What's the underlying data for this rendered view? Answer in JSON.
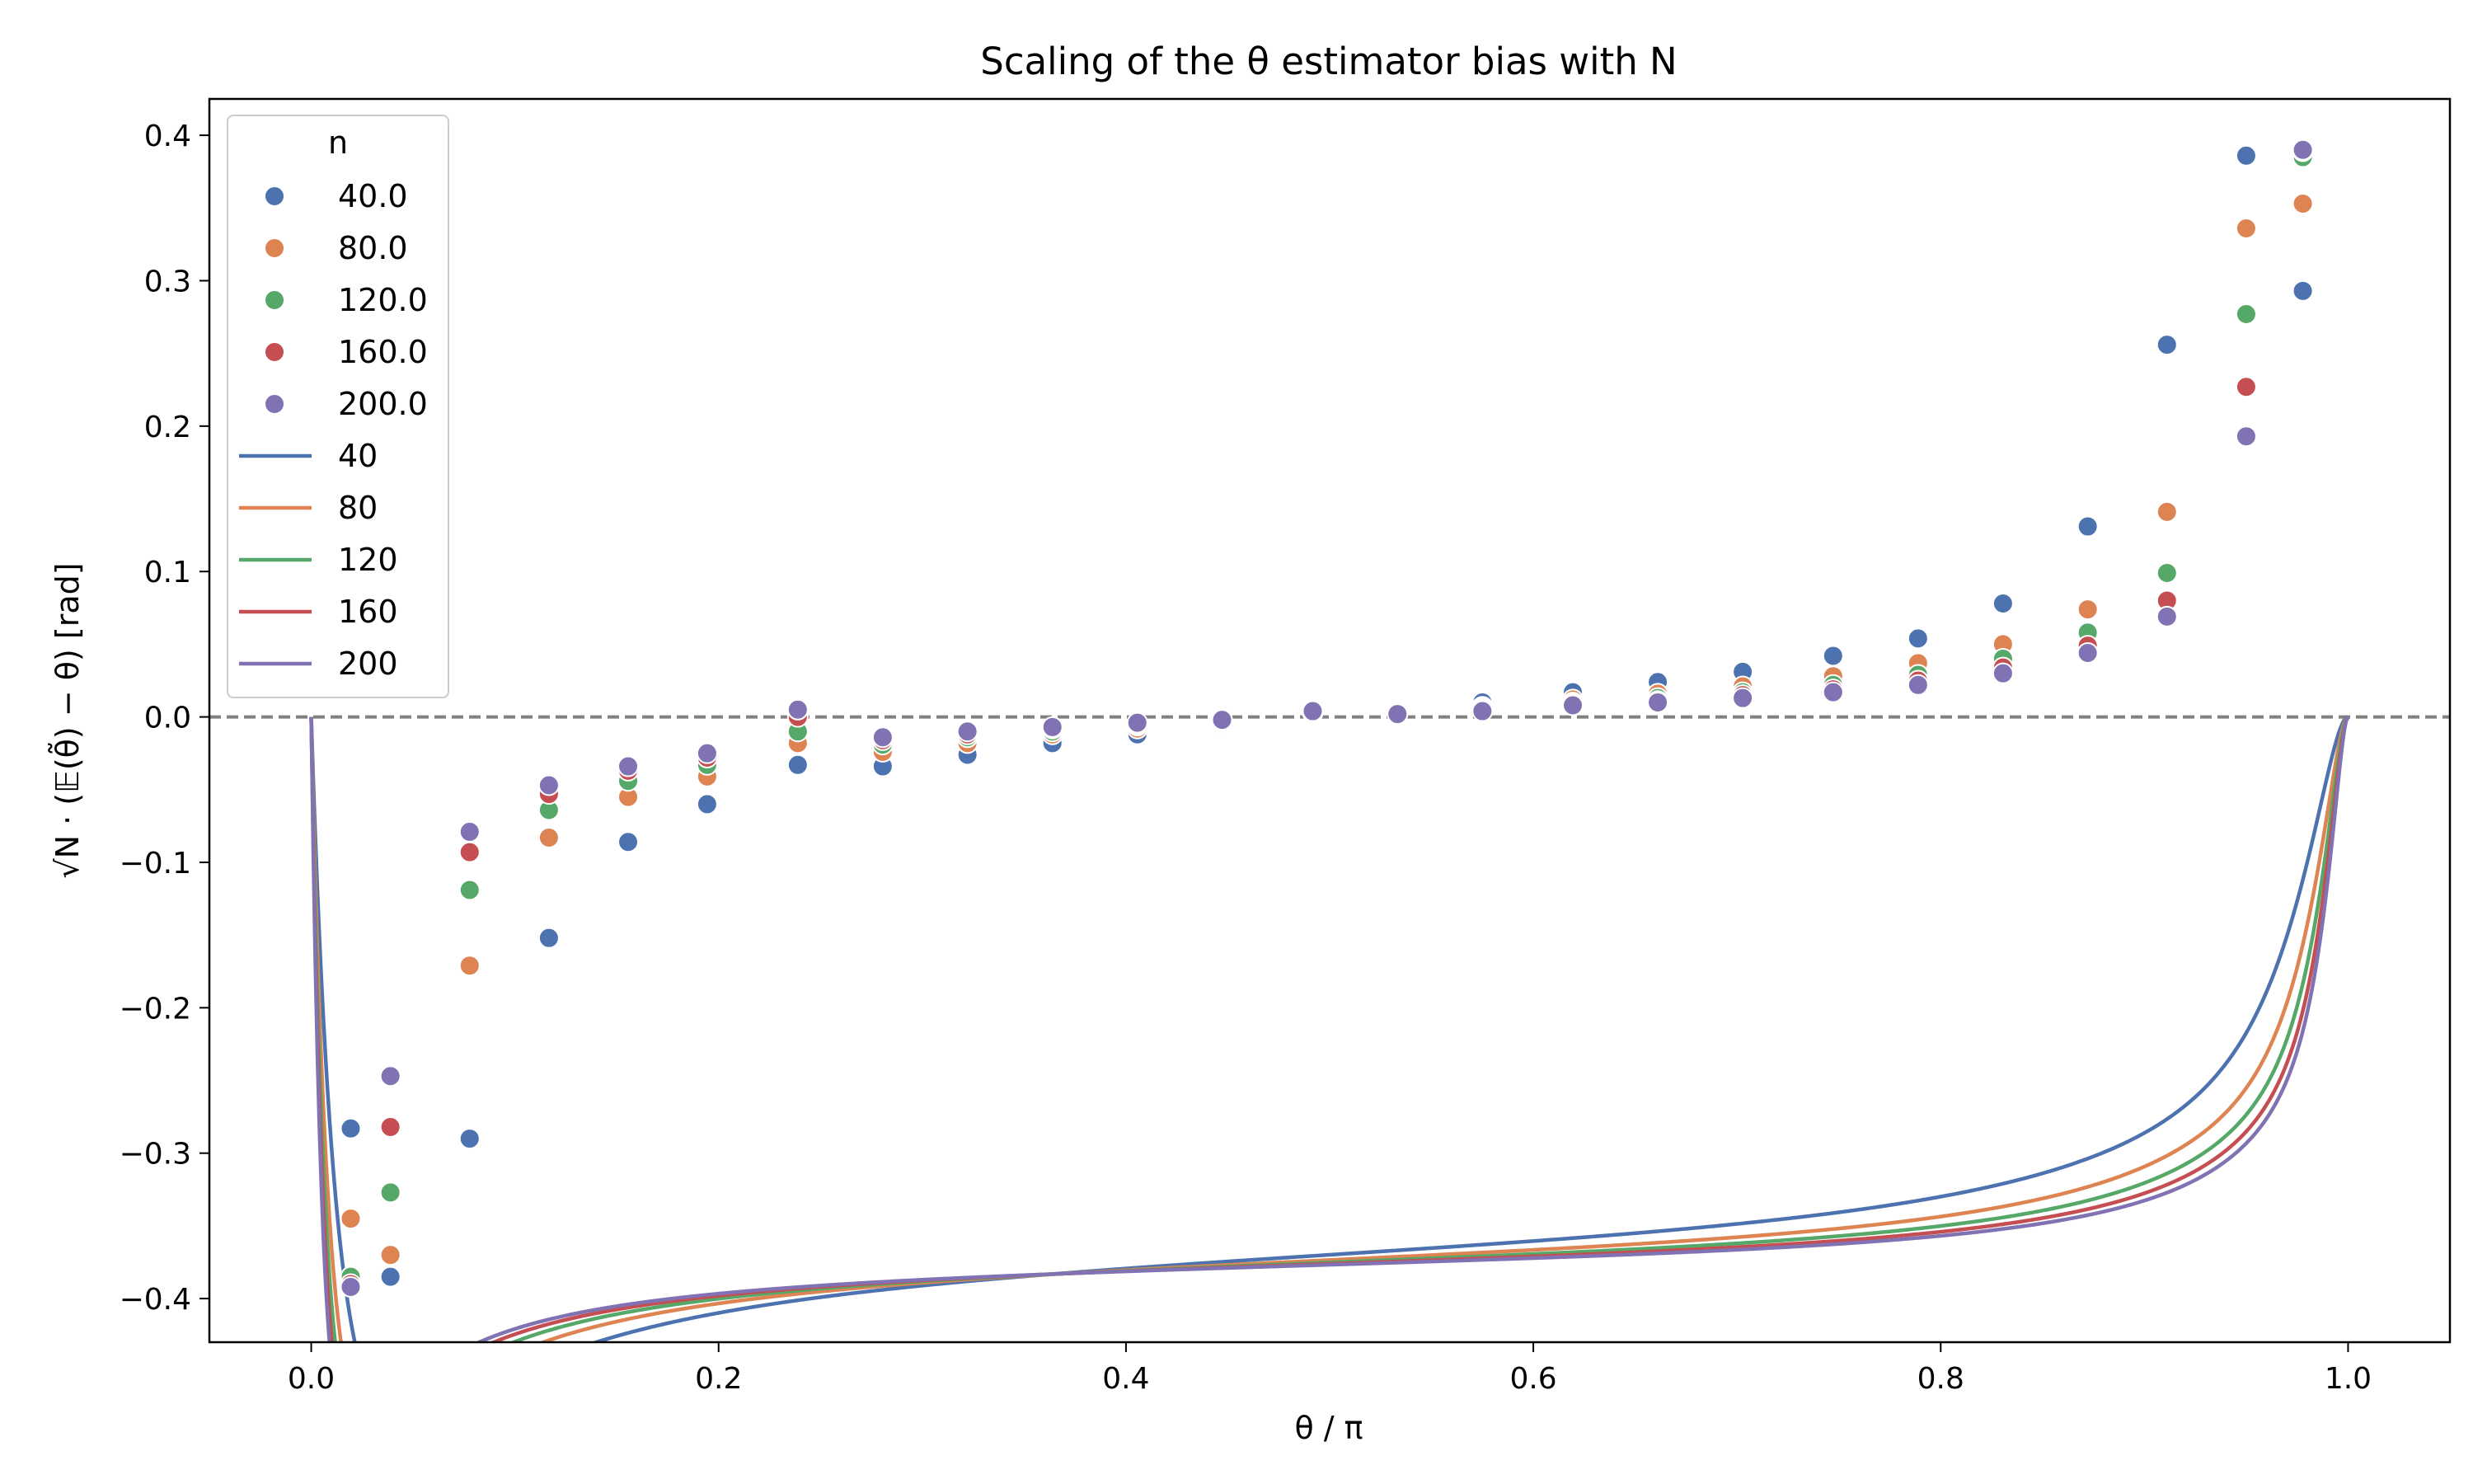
{
  "chart_data": {
    "type": "line",
    "title": "Scaling of the θ estimator bias with N",
    "xlabel": "θ / π",
    "ylabel": "√N · (𝔼(θ̃) − θ) [rad]",
    "xlim": [
      -0.05,
      1.05
    ],
    "ylim": [
      -0.43,
      0.425
    ],
    "x_ticks": [
      0.0,
      0.2,
      0.4,
      0.6,
      0.8,
      1.0
    ],
    "x_tick_labels": [
      "0.0",
      "0.2",
      "0.4",
      "0.6",
      "0.8",
      "1.0"
    ],
    "y_ticks": [
      0.4,
      0.3,
      0.2,
      0.1,
      0.0,
      -0.1,
      -0.2,
      -0.3,
      -0.4
    ],
    "y_tick_labels": [
      "0.4",
      "0.3",
      "0.2",
      "0.1",
      "0.0",
      "−0.1",
      "−0.2",
      "−0.3",
      "−0.4"
    ],
    "reference_line": {
      "y": 0.0,
      "style": "dashed",
      "color": "#808080"
    },
    "grid": false,
    "legend": {
      "title": "n",
      "placement": "top-left",
      "scatter_entries": [
        "40.0",
        "80.0",
        "120.0",
        "160.0",
        "200.0"
      ],
      "line_entries": [
        "40",
        "80",
        "120",
        "160",
        "200"
      ]
    },
    "colors": [
      "#4c72b0",
      "#dd8452",
      "#55a868",
      "#c44e52",
      "#8172b3"
    ],
    "x_points": [
      0.0194,
      0.0389,
      0.0778,
      0.1167,
      0.1556,
      0.1944,
      0.2389,
      0.2806,
      0.3222,
      0.3639,
      0.4056,
      0.4472,
      0.4917,
      0.5333,
      0.575,
      0.6194,
      0.6611,
      0.7028,
      0.7472,
      0.7889,
      0.8306,
      0.8722,
      0.9111,
      0.95,
      0.9778
    ],
    "scatter_series": [
      {
        "name": "40.0",
        "values": [
          -0.283,
          -0.385,
          -0.29,
          -0.152,
          -0.086,
          -0.06,
          -0.033,
          -0.034,
          -0.026,
          -0.018,
          -0.012,
          -0.005,
          0.004,
          0.002,
          0.01,
          0.017,
          0.024,
          0.031,
          0.042,
          0.054,
          0.078,
          0.131,
          0.256,
          0.386,
          0.293
        ]
      },
      {
        "name": "80.0",
        "values": [
          -0.345,
          -0.37,
          -0.171,
          -0.083,
          -0.055,
          -0.041,
          -0.018,
          -0.024,
          -0.018,
          -0.012,
          -0.008,
          -0.004,
          0.003,
          0.002,
          0.007,
          0.012,
          0.016,
          0.021,
          0.028,
          0.037,
          0.05,
          0.074,
          0.141,
          0.336,
          0.353
        ]
      },
      {
        "name": "120.0",
        "values": [
          -0.385,
          -0.327,
          -0.119,
          -0.064,
          -0.044,
          -0.033,
          -0.01,
          -0.019,
          -0.014,
          -0.01,
          -0.006,
          -0.003,
          0.003,
          0.002,
          0.006,
          0.01,
          0.013,
          0.017,
          0.022,
          0.029,
          0.04,
          0.058,
          0.099,
          0.277,
          0.385
        ]
      },
      {
        "name": "160.0",
        "values": [
          -0.39,
          -0.282,
          -0.093,
          -0.053,
          -0.037,
          -0.028,
          0.0,
          -0.016,
          -0.012,
          -0.008,
          -0.005,
          -0.002,
          0.003,
          0.002,
          0.005,
          0.009,
          0.011,
          0.015,
          0.019,
          0.025,
          0.034,
          0.049,
          0.08,
          0.227,
          0.389
        ]
      },
      {
        "name": "200.0",
        "values": [
          -0.392,
          -0.247,
          -0.079,
          -0.047,
          -0.034,
          -0.025,
          0.005,
          -0.014,
          -0.01,
          -0.007,
          -0.004,
          -0.002,
          0.004,
          0.002,
          0.004,
          0.008,
          0.01,
          0.013,
          0.017,
          0.022,
          0.03,
          0.044,
          0.069,
          0.193,
          0.39
        ]
      }
    ],
    "line_series": [
      {
        "name": "40",
        "n": 40
      },
      {
        "name": "80",
        "n": 80
      },
      {
        "name": "120",
        "n": 120
      },
      {
        "name": "160",
        "n": 160
      },
      {
        "name": "200",
        "n": 200
      }
    ]
  }
}
